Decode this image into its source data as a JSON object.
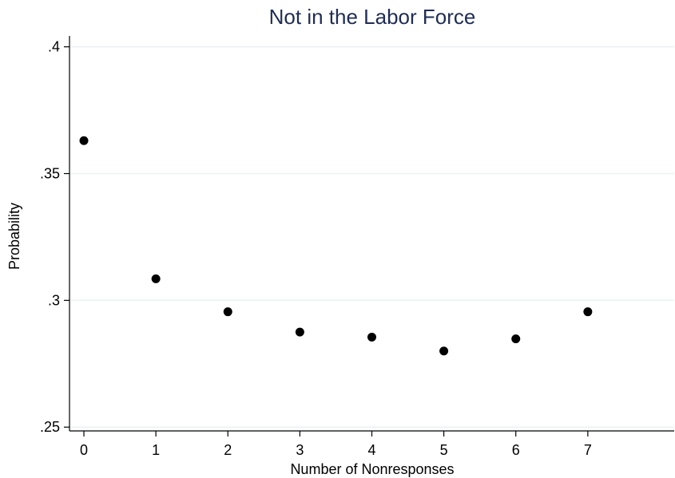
{
  "chart_data": {
    "type": "scatter",
    "title": "Not in the Labor Force",
    "xlabel": "Number of Nonresponses",
    "ylabel": "Probability",
    "x": [
      0,
      1,
      2,
      3,
      4,
      5,
      6,
      7
    ],
    "y": [
      0.363,
      0.3085,
      0.2955,
      0.2875,
      0.2855,
      0.28,
      0.2848,
      0.2955
    ],
    "xlim": [
      -0.2,
      8.2
    ],
    "ylim": [
      0.2485,
      0.4043
    ],
    "xticks": [
      0,
      1,
      2,
      3,
      4,
      5,
      6,
      7
    ],
    "xtick_labels": [
      "0",
      "1",
      "2",
      "3",
      "4",
      "5",
      "6",
      "7"
    ],
    "yticks": [
      0.25,
      0.3,
      0.35,
      0.4
    ],
    "ytick_labels": [
      ".25",
      ".3",
      ".35",
      ".4"
    ],
    "grid": true,
    "legend": "none",
    "colors": {
      "marker": "#000000",
      "title": "#1f2d56",
      "grid": "#eaf2f3"
    }
  }
}
